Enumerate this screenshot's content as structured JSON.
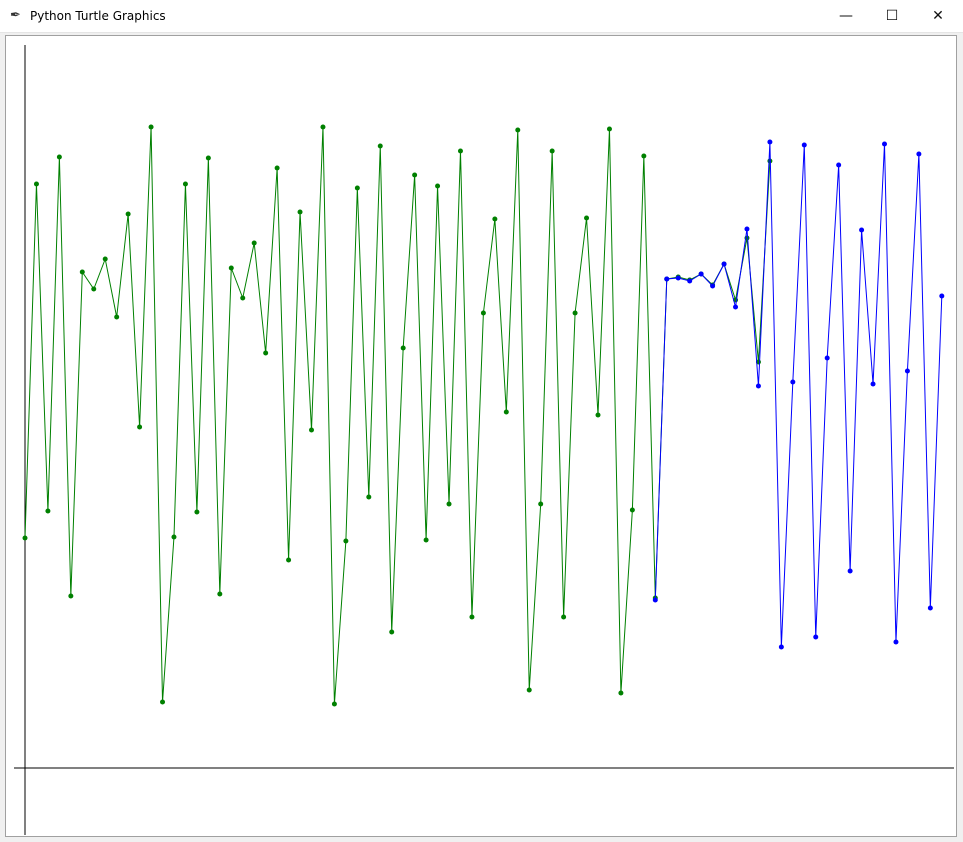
{
  "window": {
    "title": "Python Turtle Graphics",
    "icon": "feather-icon",
    "minimize": "—",
    "maximize": "☐",
    "close": "✕"
  },
  "chart_data": {
    "type": "line",
    "title": "",
    "xlabel": "",
    "ylabel": "",
    "grid": false,
    "series": [
      {
        "color": "#008000",
        "x_start": 0,
        "values": [
          230,
          584,
          257,
          611,
          172,
          496,
          479,
          509,
          451,
          554,
          341,
          641,
          66,
          231,
          584,
          256,
          610,
          174,
          500,
          470,
          525,
          415,
          600,
          208,
          556,
          338,
          641,
          64,
          227,
          580,
          271,
          622,
          136,
          420,
          593,
          228,
          582,
          264,
          617,
          151,
          455,
          549,
          356,
          638,
          78,
          264,
          617,
          151,
          455,
          550,
          353,
          639,
          75,
          258,
          612,
          170,
          489,
          491,
          488,
          494,
          483,
          504,
          468,
          530,
          406,
          607
        ]
      },
      {
        "color": "#0000ff",
        "x_start": 55,
        "values": [
          168,
          489,
          490,
          487,
          494,
          482,
          504,
          461,
          539,
          382,
          626,
          121,
          386,
          623,
          131,
          410,
          603,
          197,
          538,
          384,
          624,
          126,
          397,
          614,
          160,
          472
        ]
      }
    ]
  }
}
